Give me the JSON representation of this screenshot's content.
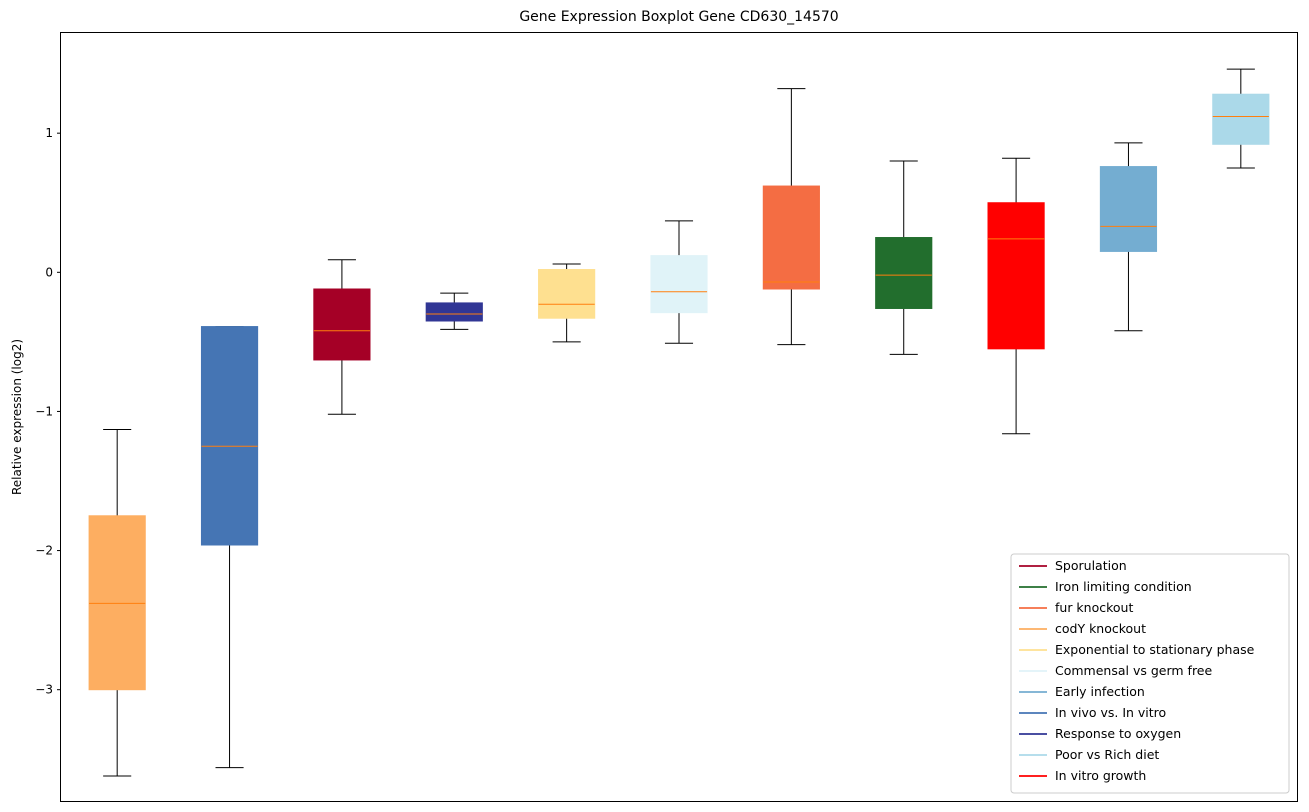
{
  "chart_data": {
    "type": "boxplot",
    "title": "Gene Expression Boxplot Gene CD630_14570",
    "xlabel": "",
    "ylabel": "Relative expression (log2)",
    "ylim": [
      -3.8,
      1.72
    ],
    "yticks": [
      1,
      0,
      -1,
      -2,
      -3
    ],
    "ytick_labels": [
      "1",
      "0",
      "−1",
      "−2",
      "−3"
    ],
    "grid": false,
    "legend_position": "lower-right",
    "boxes": [
      {
        "condition": "codY knockout",
        "color": "#fdae61",
        "whisker_low": -3.62,
        "q1": -3.0,
        "median": -2.38,
        "q3": -1.75,
        "whisker_high": -1.13
      },
      {
        "condition": "In vivo vs. In vitro",
        "color": "#4575b4",
        "whisker_low": -3.56,
        "q1": -1.96,
        "median": -1.25,
        "q3": -0.39,
        "whisker_high": -0.39
      },
      {
        "condition": "Sporulation",
        "color": "#a50026",
        "whisker_low": -1.02,
        "q1": -0.63,
        "median": -0.42,
        "q3": -0.12,
        "whisker_high": 0.09
      },
      {
        "condition": "Response to oxygen",
        "color": "#313695",
        "whisker_low": -0.41,
        "q1": -0.35,
        "median": -0.3,
        "q3": -0.22,
        "whisker_high": -0.15
      },
      {
        "condition": "Exponential to stationary phase",
        "color": "#fee090",
        "whisker_low": -0.5,
        "q1": -0.33,
        "median": -0.23,
        "q3": 0.02,
        "whisker_high": 0.06
      },
      {
        "condition": "Commensal vs germ free",
        "color": "#e0f3f8",
        "whisker_low": -0.51,
        "q1": -0.29,
        "median": -0.14,
        "q3": 0.12,
        "whisker_high": 0.37
      },
      {
        "condition": "fur knockout",
        "color": "#f46d43",
        "whisker_low": -0.52,
        "q1": -0.12,
        "median": -0.07,
        "q3": 0.62,
        "whisker_high": 1.32
      },
      {
        "condition": "Iron limiting condition",
        "color": "#226e2d",
        "whisker_low": -0.59,
        "q1": -0.26,
        "median": -0.02,
        "q3": 0.25,
        "whisker_high": 0.8
      },
      {
        "condition": "In vitro growth",
        "color": "#ff0000",
        "whisker_low": -1.16,
        "q1": -0.55,
        "median": 0.24,
        "q3": 0.5,
        "whisker_high": 0.82
      },
      {
        "condition": "Early infection",
        "color": "#74add1",
        "whisker_low": -0.42,
        "q1": 0.15,
        "median": 0.33,
        "q3": 0.76,
        "whisker_high": 0.93
      },
      {
        "condition": "Poor vs Rich diet",
        "color": "#abd9e9",
        "whisker_low": 0.75,
        "q1": 0.92,
        "median": 1.12,
        "q3": 1.28,
        "whisker_high": 1.46
      }
    ],
    "legend": [
      {
        "label": "Sporulation",
        "color": "#a50026"
      },
      {
        "label": "Iron limiting condition",
        "color": "#226e2d"
      },
      {
        "label": "fur knockout",
        "color": "#f46d43"
      },
      {
        "label": "codY knockout",
        "color": "#fdae61"
      },
      {
        "label": "Exponential to stationary phase",
        "color": "#fee090"
      },
      {
        "label": "Commensal vs germ free",
        "color": "#e0f3f8"
      },
      {
        "label": "Early infection",
        "color": "#74add1"
      },
      {
        "label": "In vivo vs. In vitro",
        "color": "#4575b4"
      },
      {
        "label": "Response to oxygen",
        "color": "#313695"
      },
      {
        "label": "Poor vs Rich diet",
        "color": "#abd9e9"
      },
      {
        "label": "In vitro growth",
        "color": "#ff0000"
      }
    ],
    "median_color": "#ff7f0e",
    "whisker_color": "#000000"
  }
}
